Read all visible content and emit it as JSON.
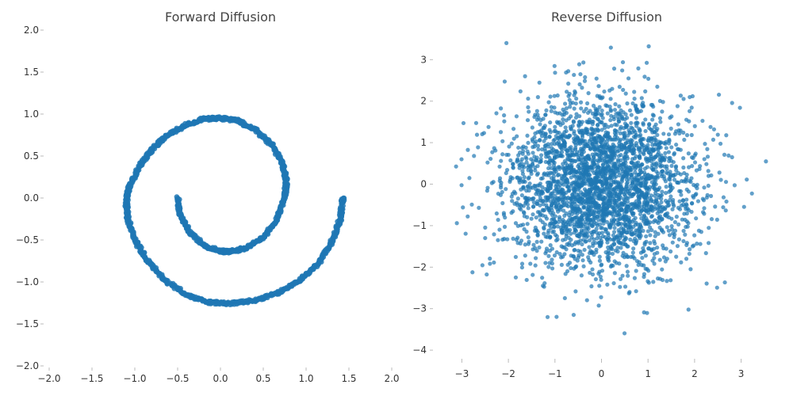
{
  "chart_data": [
    {
      "type": "scatter",
      "title": "Forward Diffusion",
      "xlabel": "",
      "ylabel": "",
      "xlim": [
        -2.0,
        2.0
      ],
      "ylim": [
        -2.0,
        2.0
      ],
      "xticks": [
        "−2.0",
        "−1.5",
        "−1.0",
        "−0.5",
        "0.0",
        "0.5",
        "1.0",
        "1.5",
        "2.0"
      ],
      "yticks": [
        "2.0",
        "1.5",
        "1.0",
        "0.5",
        "0.0",
        "−0.5",
        "−1.0",
        "−1.5",
        "−2.0"
      ],
      "grid": false,
      "color": "#1f77b4",
      "series": [
        {
          "points": [
            [
              -0.5,
              0.0
            ],
            [
              -0.47,
              -0.2
            ],
            [
              -0.35,
              -0.42
            ],
            [
              -0.18,
              -0.57
            ],
            [
              0.0,
              -0.63
            ],
            [
              0.08,
              -0.64
            ],
            [
              0.3,
              -0.6
            ],
            [
              0.5,
              -0.47
            ],
            [
              0.66,
              -0.26
            ],
            [
              0.75,
              0.0
            ],
            [
              0.77,
              0.2
            ],
            [
              0.73,
              0.4
            ],
            [
              0.6,
              0.63
            ],
            [
              0.4,
              0.82
            ],
            [
              0.2,
              0.92
            ],
            [
              0.0,
              0.95
            ],
            [
              -0.2,
              0.94
            ],
            [
              -0.4,
              0.87
            ],
            [
              -0.6,
              0.76
            ],
            [
              -0.8,
              0.58
            ],
            [
              -0.95,
              0.37
            ],
            [
              -1.07,
              0.12
            ],
            [
              -1.1,
              -0.05
            ],
            [
              -1.08,
              -0.25
            ],
            [
              -1.0,
              -0.5
            ],
            [
              -0.85,
              -0.75
            ],
            [
              -0.65,
              -0.98
            ],
            [
              -0.4,
              -1.15
            ],
            [
              -0.15,
              -1.24
            ],
            [
              0.1,
              -1.26
            ],
            [
              0.4,
              -1.22
            ],
            [
              0.7,
              -1.12
            ],
            [
              0.95,
              -0.96
            ],
            [
              1.15,
              -0.77
            ],
            [
              1.3,
              -0.52
            ],
            [
              1.4,
              -0.25
            ],
            [
              1.43,
              0.0
            ]
          ]
        }
      ]
    },
    {
      "type": "scatter",
      "title": "Reverse Diffusion",
      "xlabel": "",
      "ylabel": "",
      "xlim": [
        -4.0,
        4.0
      ],
      "ylim": [
        -4.0,
        3.5
      ],
      "xticks": [
        "−3",
        "−2",
        "−1",
        "0",
        "1",
        "2",
        "3"
      ],
      "yticks": [
        "3",
        "2",
        "1",
        "0",
        "−1",
        "−2",
        "−3",
        "−4"
      ],
      "grid": false,
      "color": "#1f77b4",
      "series": [
        {
          "distribution": "standard normal (2D)",
          "count": 3000,
          "mean": [
            0,
            0
          ],
          "std": [
            1,
            1
          ]
        }
      ]
    }
  ]
}
